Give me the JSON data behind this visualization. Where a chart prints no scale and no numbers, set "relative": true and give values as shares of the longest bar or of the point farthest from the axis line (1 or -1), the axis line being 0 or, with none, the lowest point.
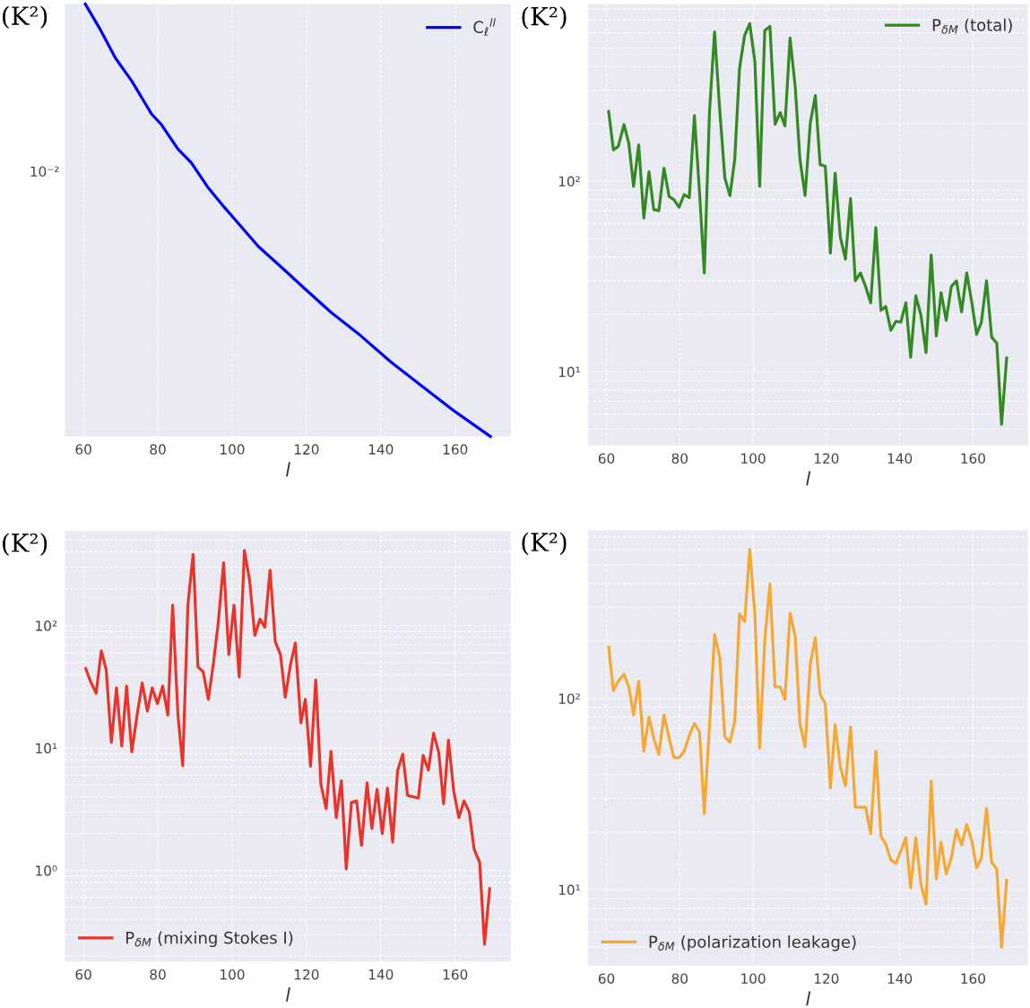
{
  "chart_data": [
    {
      "type": "line",
      "xlabel": "l",
      "ylabel": "(K²)",
      "grid": true,
      "legend": "top right",
      "line_style": "solid",
      "marker": "none",
      "xlim": [
        55,
        175
      ],
      "xticks": [
        60,
        80,
        100,
        120,
        140,
        160
      ],
      "relative": true,
      "annotations": [
        "10⁻²"
      ],
      "series": [
        {
          "name": "C$_{ℓ}$$^{ll}$",
          "color": "#0000ff",
          "x": [
            60.5,
            63.7,
            64.6,
            68.6,
            73.0,
            78.3,
            81.0,
            85.4,
            89.0,
            93.4,
            97.8,
            107.1,
            114.2,
            119.5,
            126.6,
            134.6,
            142.6,
            150.5,
            159.4,
            169.5
          ],
          "values": [
            1,
            0.953,
            0.94,
            0.875,
            0.822,
            0.746,
            0.721,
            0.665,
            0.633,
            0.577,
            0.531,
            0.439,
            0.384,
            0.342,
            0.287,
            0.233,
            0.173,
            0.12,
            0.061,
            0
          ]
        }
      ]
    },
    {
      "type": "line",
      "xlabel": "l",
      "ylabel": "(K²)",
      "log": "y",
      "grid": true,
      "legend": "top right",
      "line_style": "solid",
      "marker": "none",
      "xlim": [
        55,
        175
      ],
      "xticks": [
        60,
        80,
        100,
        120,
        140,
        160
      ],
      "ylim": [
        4.1,
        850
      ],
      "yticks": [
        {
          "value": 10,
          "label": "10¹"
        },
        {
          "value": 100,
          "label": "10²"
        }
      ],
      "series": [
        {
          "name": "P$_{δM}$ (total)",
          "color": "#338a22",
          "x": [
            60.6,
            61.9,
            63.2,
            64.8,
            66.1,
            67.4,
            68.8,
            70.2,
            71.6,
            72.9,
            74.3,
            75.7,
            77.1,
            78.4,
            79.8,
            81.2,
            82.6,
            84.0,
            85.4,
            86.7,
            88.1,
            89.5,
            90.9,
            92.3,
            93.7,
            95.0,
            96.3,
            97.7,
            99.1,
            100.5,
            101.8,
            103.2,
            104.6,
            106.0,
            107.4,
            108.7,
            110.1,
            111.5,
            112.8,
            114.2,
            115.6,
            117.0,
            118.3,
            119.7,
            121.1,
            122.4,
            123.8,
            125.2,
            126.6,
            127.9,
            129.3,
            130.7,
            132.1,
            133.5,
            134.9,
            136.2,
            137.6,
            139.0,
            140.3,
            141.7,
            143.0,
            144.4,
            145.8,
            147.2,
            148.6,
            150.0,
            151.3,
            152.7,
            154.1,
            155.5,
            156.9,
            158.3,
            159.7,
            161.0,
            162.3,
            163.7,
            165.1,
            166.5,
            167.8,
            169.2
          ],
          "values": [
            232,
            146,
            152,
            198,
            158,
            94,
            155,
            64,
            112,
            71,
            70,
            117,
            83,
            80,
            73,
            85,
            82,
            221,
            87,
            33,
            228,
            607,
            237,
            104,
            84,
            130,
            390,
            582,
            670,
            423,
            94,
            618,
            649,
            199,
            229,
            195,
            564,
            313,
            130,
            84,
            201,
            281,
            122,
            120,
            42,
            110,
            51,
            39,
            81,
            30,
            33,
            28,
            23,
            57,
            21,
            22,
            16.5,
            18.4,
            18.2,
            23,
            11.9,
            25,
            19.8,
            12.6,
            41,
            15.4,
            26,
            18.6,
            28,
            30,
            20.6,
            33,
            23,
            15.7,
            18.2,
            30,
            15.2,
            14.1,
            5.3,
            11.8
          ]
        }
      ]
    },
    {
      "type": "line",
      "xlabel": "l",
      "ylabel": "(K²)",
      "log": "y",
      "grid": true,
      "legend": "bottom left",
      "line_style": "solid",
      "marker": "none",
      "xlim": [
        55,
        175
      ],
      "xticks": [
        60,
        80,
        100,
        120,
        140,
        160
      ],
      "ylim": [
        0.18,
        590
      ],
      "yticks": [
        {
          "value": 1,
          "label": "10⁰"
        },
        {
          "value": 10,
          "label": "10¹"
        },
        {
          "value": 100,
          "label": "10²"
        }
      ],
      "series": [
        {
          "name": "P$_{δM}$ (mixing Stokes I)",
          "color": "#e8342a",
          "x": [
            60.6,
            61.9,
            63.4,
            64.8,
            66.1,
            67.5,
            68.9,
            70.3,
            71.6,
            73.0,
            74.4,
            75.8,
            77.2,
            78.5,
            79.9,
            81.3,
            82.7,
            84.0,
            85.4,
            86.7,
            88.1,
            89.5,
            90.8,
            92.2,
            93.6,
            95.0,
            96.3,
            97.7,
            99.1,
            100.5,
            101.9,
            103.3,
            104.7,
            106.1,
            107.5,
            108.8,
            110.2,
            111.6,
            113.0,
            114.3,
            115.7,
            117.0,
            118.5,
            119.7,
            121.1,
            122.5,
            123.9,
            125.3,
            126.6,
            128.0,
            129.4,
            130.7,
            132.1,
            133.5,
            134.8,
            136.3,
            137.6,
            139.0,
            140.4,
            141.8,
            143.2,
            144.5,
            145.9,
            147.2,
            148.7,
            150.1,
            151.4,
            152.8,
            154.2,
            155.6,
            156.9,
            158.2,
            159.6,
            161.0,
            162.4,
            163.8,
            165.1,
            166.6,
            167.9,
            169.3
          ],
          "values": [
            44.6,
            35,
            28,
            62,
            44,
            11.1,
            31,
            10.4,
            32,
            9.3,
            18.3,
            34,
            20,
            31,
            23,
            32,
            18.6,
            147,
            18.9,
            7.2,
            147,
            381,
            46,
            42,
            25,
            50,
            108,
            326,
            58,
            147,
            38,
            411,
            234,
            83,
            113,
            97,
            283,
            74,
            58,
            26,
            48,
            72,
            16,
            25,
            7.1,
            36,
            5.0,
            3.2,
            9.4,
            2.7,
            5.4,
            1.03,
            3.6,
            3.7,
            1.6,
            5.2,
            2.2,
            4.6,
            2.0,
            4.7,
            1.7,
            6.5,
            8.9,
            4.1,
            4.0,
            3.9,
            8.7,
            6.6,
            13.2,
            9.2,
            3.5,
            11.6,
            4.5,
            2.7,
            3.7,
            3.0,
            1.5,
            1.16,
            0.25,
            0.71
          ]
        }
      ]
    },
    {
      "type": "line",
      "xlabel": "l",
      "ylabel": "(K²)",
      "log": "y",
      "grid": true,
      "legend": "bottom left",
      "line_style": "solid",
      "marker": "none",
      "xlim": [
        55,
        175
      ],
      "xticks": [
        60,
        80,
        100,
        120,
        140,
        160
      ],
      "ylim": [
        4.0,
        760
      ],
      "yticks": [
        {
          "value": 10,
          "label": "10¹"
        },
        {
          "value": 100,
          "label": "10²"
        }
      ],
      "series": [
        {
          "name": "P$_{δM}$ (polarization leakage)",
          "color": "#f5a833",
          "x": [
            60.6,
            61.9,
            63.2,
            64.8,
            66.1,
            67.4,
            68.8,
            70.2,
            71.6,
            72.9,
            74.3,
            75.7,
            77.1,
            78.4,
            79.8,
            81.2,
            82.6,
            84.0,
            85.4,
            86.7,
            88.1,
            89.5,
            90.9,
            92.3,
            93.7,
            95.0,
            96.3,
            97.7,
            99.1,
            100.5,
            101.8,
            103.2,
            104.6,
            106.0,
            107.4,
            108.7,
            110.1,
            111.5,
            112.8,
            114.2,
            115.6,
            117.0,
            118.3,
            119.7,
            121.1,
            122.4,
            123.8,
            125.2,
            126.6,
            127.9,
            129.3,
            130.7,
            132.1,
            133.5,
            134.9,
            136.2,
            137.6,
            139.0,
            140.3,
            141.7,
            143.0,
            144.4,
            145.8,
            147.2,
            148.6,
            150.0,
            151.3,
            152.7,
            154.1,
            155.5,
            156.9,
            158.3,
            159.7,
            161.0,
            162.3,
            163.7,
            165.1,
            166.5,
            167.8,
            169.2
          ],
          "values": [
            186,
            110,
            123,
            134,
            115,
            82,
            123,
            53,
            80,
            62,
            51,
            82,
            62,
            49,
            49,
            53,
            64,
            74,
            67,
            25,
            71,
            216,
            165,
            63,
            59,
            76,
            277,
            253,
            603,
            274,
            55,
            202,
            398,
            115,
            115,
            99,
            279,
            212,
            73,
            56,
            151,
            208,
            105,
            94,
            34,
            73,
            44,
            35,
            71,
            27,
            27,
            27,
            19.6,
            53,
            19.0,
            17.3,
            14.3,
            13.7,
            15.9,
            18.7,
            10.2,
            18.7,
            10.7,
            8.4,
            37,
            11.4,
            17.7,
            12.1,
            14.7,
            20.6,
            17.1,
            21.9,
            17.9,
            13.0,
            14.6,
            26.6,
            13.9,
            12.8,
            5.0,
            11.2
          ]
        }
      ]
    }
  ]
}
